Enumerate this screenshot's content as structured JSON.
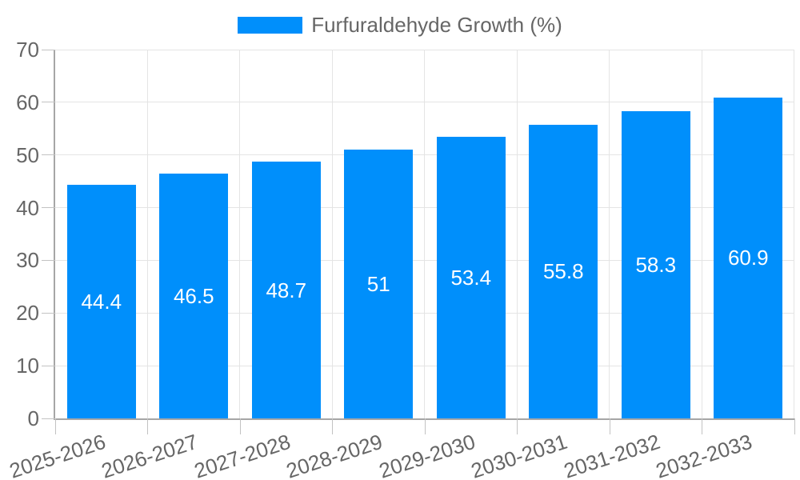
{
  "chart_data": {
    "type": "bar",
    "title": "",
    "legend_position": "top",
    "categories": [
      "2025-2026",
      "2026-2027",
      "2027-2028",
      "2028-2029",
      "2029-2030",
      "2030-2031",
      "2031-2032",
      "2032-2033"
    ],
    "series": [
      {
        "name": "Furfuraldehyde Growth (%)",
        "color": "#008FFB",
        "values": [
          44.4,
          46.5,
          48.7,
          51,
          53.4,
          55.8,
          58.3,
          60.9
        ]
      }
    ],
    "xlabel": "",
    "ylabel": "",
    "ylim": [
      0,
      70
    ],
    "y_ticks": [
      0,
      10,
      20,
      30,
      40,
      50,
      60,
      70
    ],
    "grid": true,
    "value_labels_shown": true
  },
  "colors": {
    "bar": "#008FFB",
    "grid_line": "#e4e4e4",
    "axis_line": "#a6a6a6",
    "tick": "#c2c2c2",
    "axis_text": "#666666",
    "value_text": "#ffffff",
    "background": "#ffffff"
  }
}
